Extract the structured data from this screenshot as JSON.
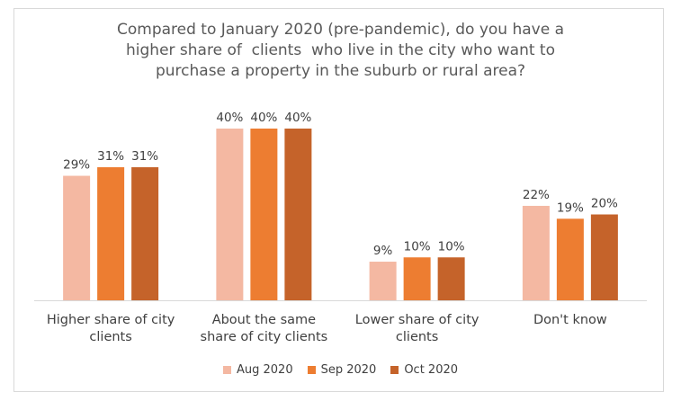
{
  "chart_data": {
    "type": "bar",
    "title_lines": [
      "Compared to January 2020 (pre-pandemic), do you have a",
      "higher share of  clients  who live in the city who want to",
      "purchase a property in the suburb or rural area?"
    ],
    "categories": [
      [
        "Higher share of city",
        "clients"
      ],
      [
        "About the same",
        "share of city clients"
      ],
      [
        "Lower share of city",
        "clients"
      ],
      [
        "Don't know"
      ]
    ],
    "series": [
      {
        "name": "Aug 2020",
        "color": "#f4b8a2",
        "values": [
          29,
          40,
          9,
          22
        ],
        "labels": [
          "29%",
          "40%",
          "9%",
          "22%"
        ]
      },
      {
        "name": "Sep 2020",
        "color": "#ed7d31",
        "values": [
          31,
          40,
          10,
          19
        ],
        "labels": [
          "31%",
          "40%",
          "10%",
          "19%"
        ]
      },
      {
        "name": "Oct 2020",
        "color": "#c5632a",
        "values": [
          31,
          40,
          10,
          20
        ],
        "labels": [
          "31%",
          "40%",
          "10%",
          "20%"
        ]
      }
    ],
    "ylim": [
      0,
      40
    ],
    "grid": false,
    "legend_position": "bottom"
  }
}
